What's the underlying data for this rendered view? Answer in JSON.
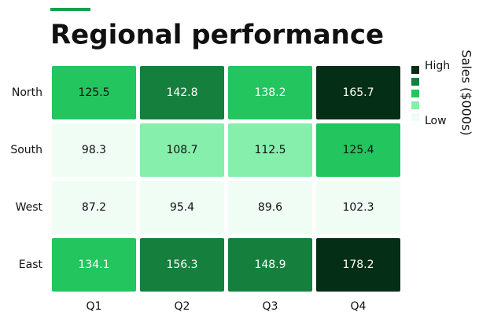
{
  "chart_data": {
    "type": "heatmap",
    "title": "Regional performance",
    "categories": [
      "Q1",
      "Q2",
      "Q3",
      "Q4"
    ],
    "rows": [
      "North",
      "South",
      "West",
      "East"
    ],
    "values": [
      [
        125.5,
        142.8,
        138.2,
        165.7
      ],
      [
        98.3,
        108.7,
        112.5,
        125.4
      ],
      [
        87.2,
        95.4,
        89.6,
        102.3
      ],
      [
        134.1,
        156.3,
        148.9,
        178.2
      ]
    ],
    "colors": [
      "#f0fdf4",
      "#86efac",
      "#22c55e",
      "#15803d",
      "#052e16"
    ],
    "legend_high": "High",
    "legend_low": "Low",
    "colorbar_label": "Sales ($000s)"
  }
}
